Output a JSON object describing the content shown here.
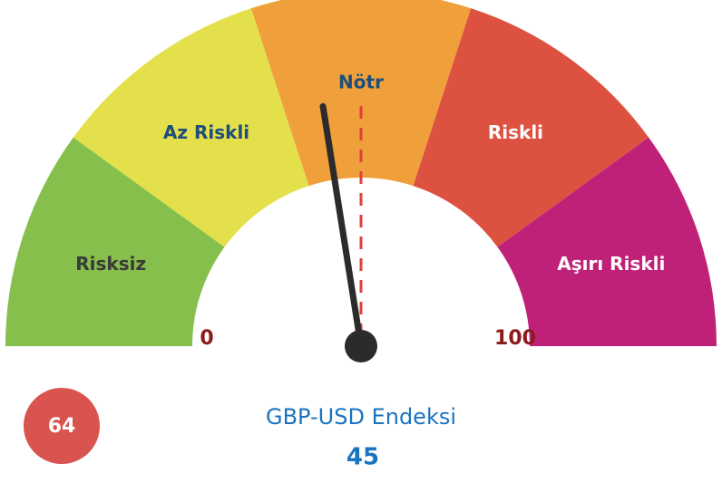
{
  "chart_data": {
    "type": "gauge",
    "title": "GBP-USD Endeksi",
    "value": 45,
    "range": [
      0,
      100
    ],
    "ticks": [
      0,
      100
    ],
    "segments": [
      {
        "name": "Risksiz",
        "color": "#86bf4b",
        "text_color": "#3a3a3a"
      },
      {
        "name": "Az Riskli",
        "color": "#e4e04b",
        "text_color": "#1e4e79"
      },
      {
        "name": "Nötr",
        "color": "#f0a03a",
        "text_color": "#1e4e79"
      },
      {
        "name": "Riskli",
        "color": "#dd5141",
        "text_color": "#ffffff"
      },
      {
        "name": "Aşırı Riskli",
        "color": "#c02178",
        "text_color": "#ffffff"
      }
    ],
    "badge": 64,
    "badge_color": "#d9534f",
    "needle_color": "#2b2b2b",
    "tick_color": "#8b1a1a",
    "title_color": "#1a73c0"
  }
}
